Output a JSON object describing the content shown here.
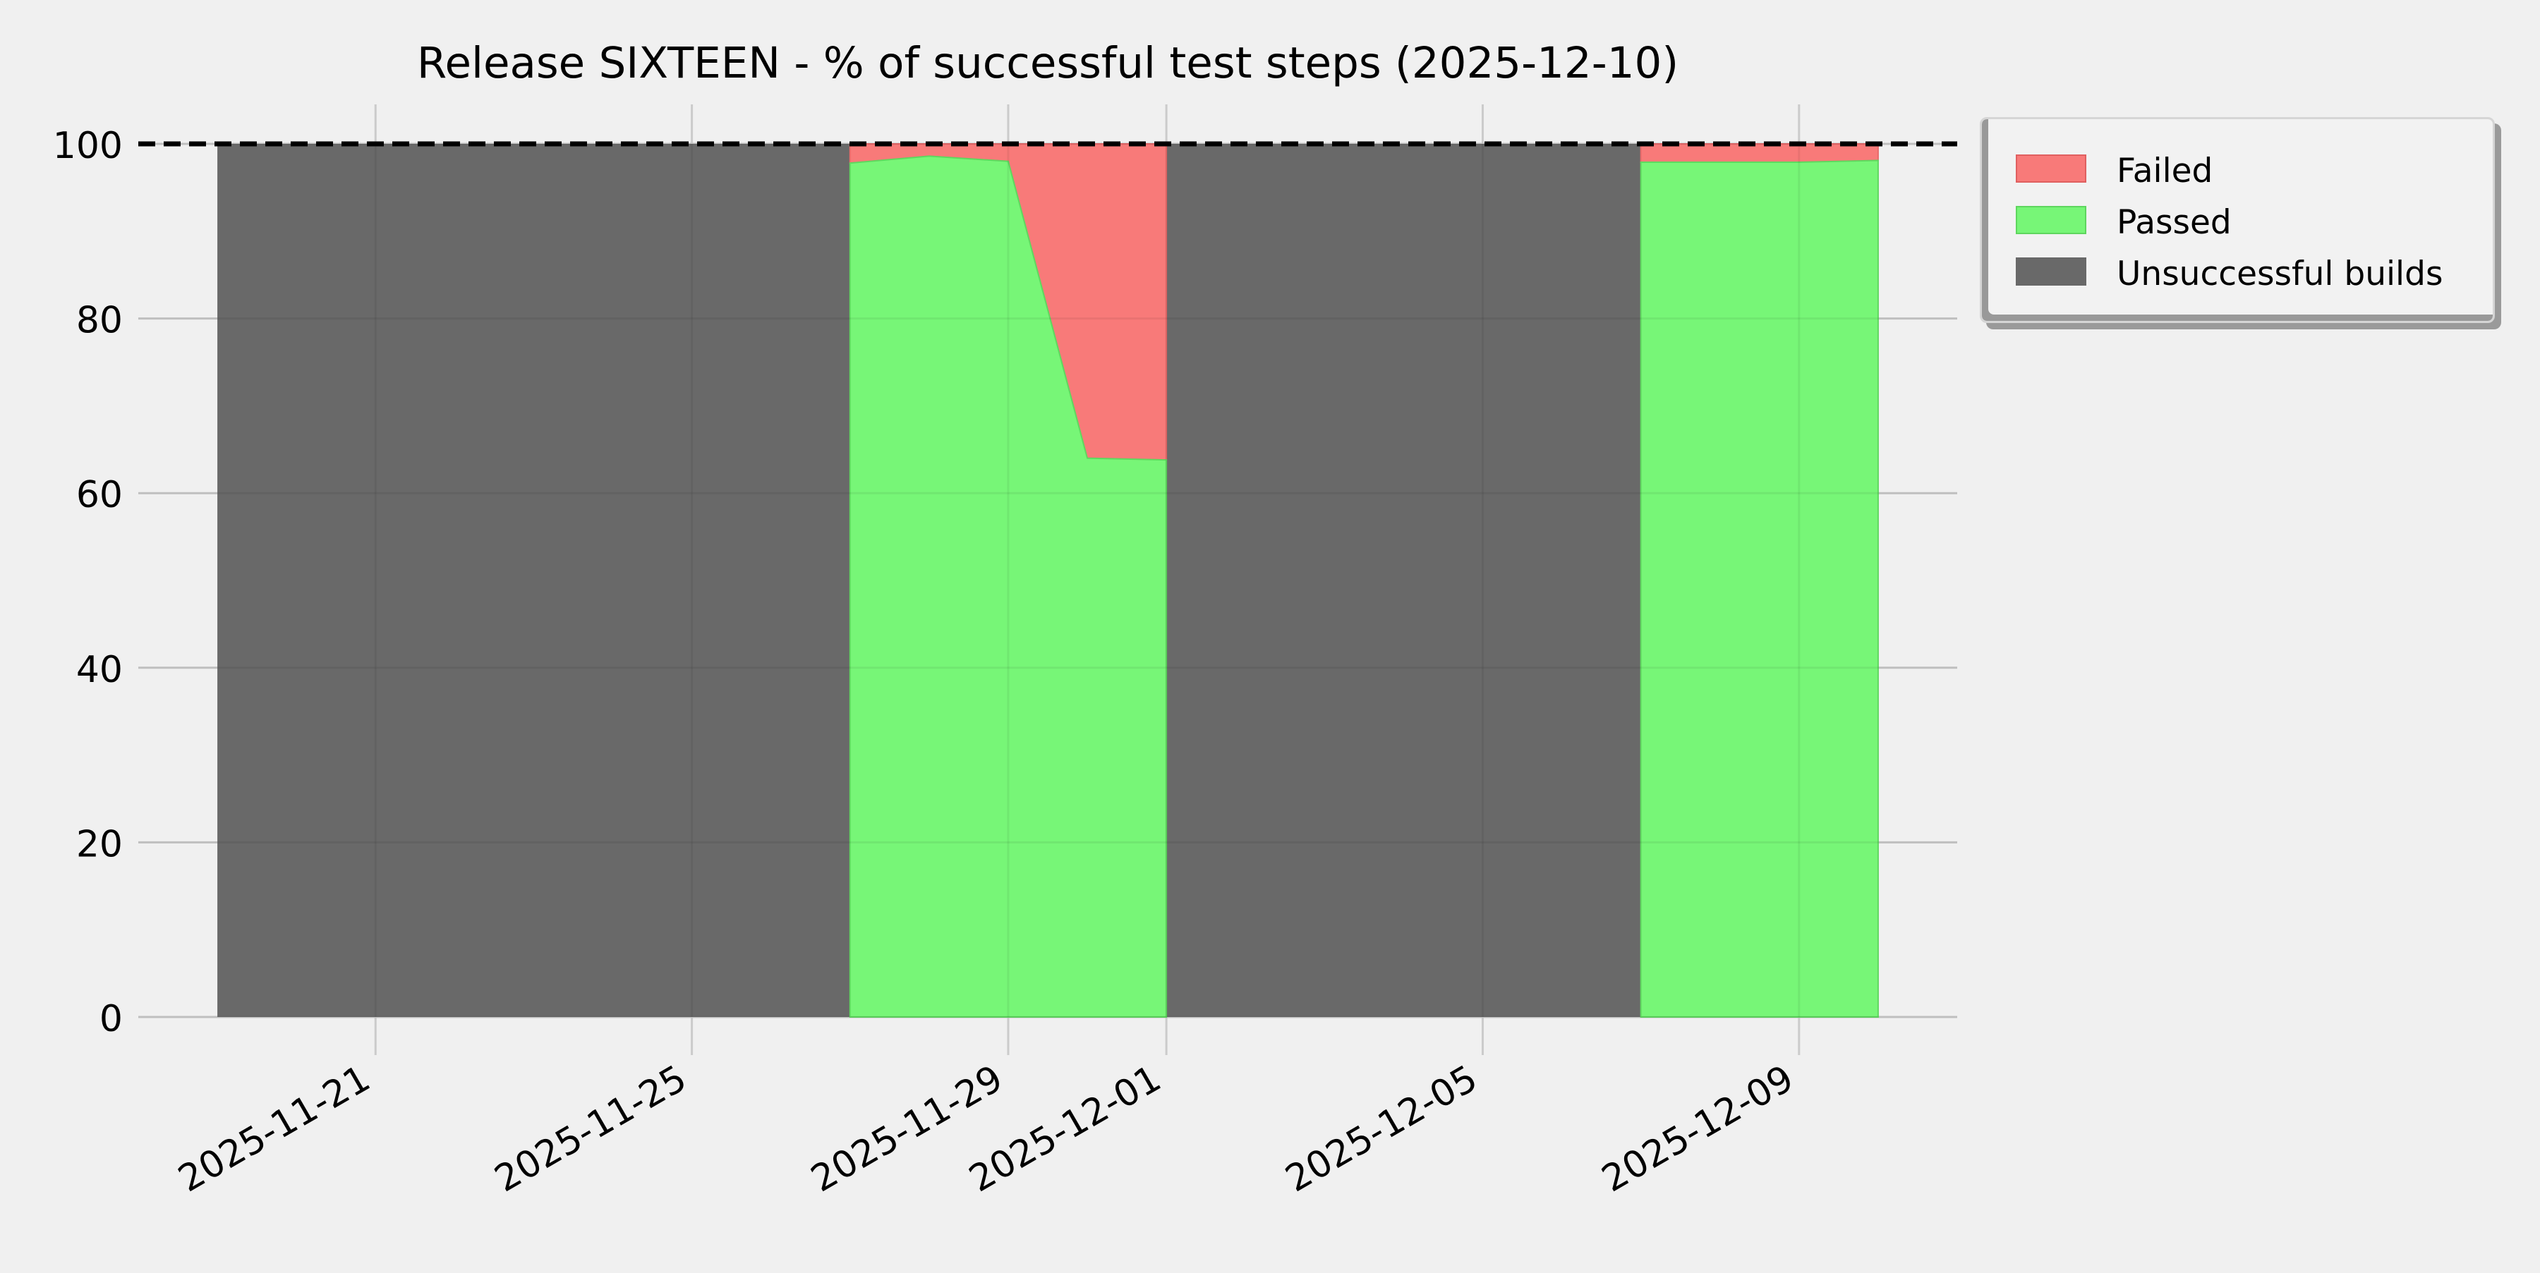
{
  "chart_data": {
    "type": "area",
    "title": "Release SIXTEEN - % of successful test steps (2025-12-10)",
    "xlabel": "",
    "ylabel": "",
    "ylim": [
      0,
      100
    ],
    "yticks": [
      0,
      20,
      40,
      60,
      80,
      100
    ],
    "xlim": [
      "2025-11-18",
      "2025-12-11"
    ],
    "xticks": [
      "2025-11-21",
      "2025-11-25",
      "2025-11-29",
      "2025-12-01",
      "2025-12-05",
      "2025-12-09"
    ],
    "reference_line": {
      "y": 100,
      "style": "dashed",
      "color": "#000000"
    },
    "grid": true,
    "legend_position": "right-outside-top",
    "series": [
      {
        "name": "Unsuccessful builds",
        "color": "#696969",
        "segments": [
          {
            "x": [
              "2025-11-19",
              "2025-11-27"
            ],
            "y": [
              100,
              100
            ]
          },
          {
            "x": [
              "2025-12-01",
              "2025-12-07"
            ],
            "y": [
              100,
              100
            ]
          }
        ]
      },
      {
        "name": "Passed",
        "color": "#77f677",
        "segments": [
          {
            "x": [
              "2025-11-27",
              "2025-11-28",
              "2025-11-29",
              "2025-11-30",
              "2025-12-01"
            ],
            "y": [
              97.8,
              98.6,
              98.0,
              64.0,
              63.8
            ]
          },
          {
            "x": [
              "2025-12-07",
              "2025-12-08",
              "2025-12-09",
              "2025-12-10"
            ],
            "y": [
              97.9,
              97.9,
              97.9,
              98.1
            ]
          }
        ]
      },
      {
        "name": "Failed",
        "color": "#f87a79",
        "segments": [
          {
            "x": [
              "2025-11-27",
              "2025-11-28",
              "2025-11-29",
              "2025-11-30",
              "2025-12-01"
            ],
            "y": [
              2.2,
              1.4,
              2.0,
              36.0,
              36.2
            ]
          },
          {
            "x": [
              "2025-12-07",
              "2025-12-08",
              "2025-12-09",
              "2025-12-10"
            ],
            "y": [
              2.1,
              2.1,
              2.1,
              1.9
            ]
          }
        ]
      }
    ]
  },
  "legend": {
    "items": [
      {
        "label": "Failed",
        "color": "#f87a79",
        "border": "#e06060"
      },
      {
        "label": "Passed",
        "color": "#77f677",
        "border": "#5ed65e"
      },
      {
        "label": "Unsuccessful builds",
        "color": "#696969",
        "border": "#696969"
      }
    ]
  }
}
